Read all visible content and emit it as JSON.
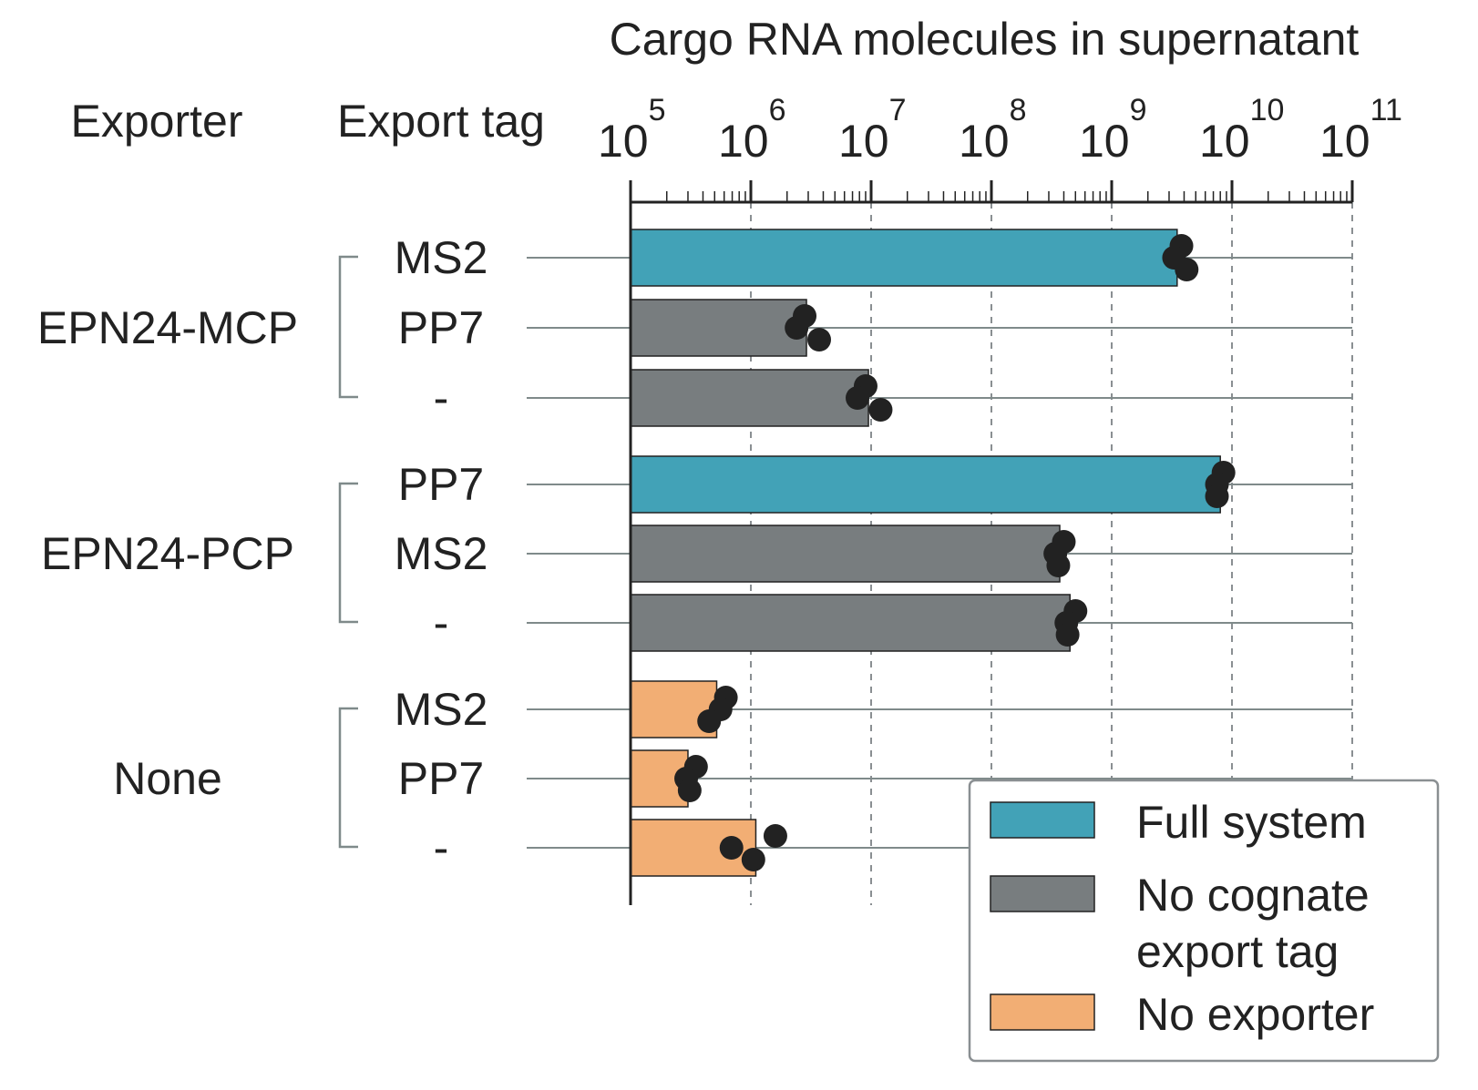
{
  "chart_data": {
    "type": "bar",
    "orientation": "horizontal",
    "title": "Cargo RNA molecules in supernatant",
    "x_scale": "log",
    "xlim": [
      100000,
      100000000000
    ],
    "x_tick_exponents": [
      "5",
      "6",
      "7",
      "8",
      "9",
      "10",
      "11"
    ],
    "x_tick_base": "10",
    "grid": "vertical dashed at decades",
    "column_headers": {
      "exporter": "Exporter",
      "export_tag": "Export tag"
    },
    "groups": [
      {
        "exporter": "EPN24-MCP",
        "rows": [
          0,
          1,
          2
        ]
      },
      {
        "exporter": "EPN24-PCP",
        "rows": [
          3,
          4,
          5
        ]
      },
      {
        "exporter": "None",
        "rows": [
          6,
          7,
          8
        ]
      }
    ],
    "rows": [
      {
        "tag": "MS2",
        "category": "full",
        "value": 3500000000,
        "points": [
          3800000000,
          3300000000,
          4200000000
        ]
      },
      {
        "tag": "PP7",
        "category": "nocognate",
        "value": 2900000,
        "points": [
          2800000,
          2400000,
          3700000
        ]
      },
      {
        "tag": "-",
        "category": "nocognate",
        "value": 9500000,
        "points": [
          9000000,
          7700000,
          12000000
        ]
      },
      {
        "tag": "PP7",
        "category": "full",
        "value": 8000000000,
        "points": [
          8500000000,
          7500000000,
          7500000000
        ]
      },
      {
        "tag": "MS2",
        "category": "nocognate",
        "value": 370000000,
        "points": [
          400000000,
          340000000,
          360000000
        ]
      },
      {
        "tag": "-",
        "category": "nocognate",
        "value": 450000000,
        "points": [
          500000000,
          420000000,
          430000000
        ]
      },
      {
        "tag": "MS2",
        "category": "noexporter",
        "value": 520000,
        "points": [
          620000,
          560000,
          450000
        ]
      },
      {
        "tag": "PP7",
        "category": "noexporter",
        "value": 300000,
        "points": [
          350000,
          290000,
          310000
        ]
      },
      {
        "tag": "-",
        "category": "noexporter",
        "value": 1100000,
        "points": [
          1600000,
          690000,
          1050000
        ]
      }
    ],
    "legend": {
      "placement": "bottom-right",
      "entries": [
        {
          "key": "full",
          "lines": [
            "Full system"
          ]
        },
        {
          "key": "nocognate",
          "lines": [
            "No cognate",
            "export tag"
          ]
        },
        {
          "key": "noexporter",
          "lines": [
            "No exporter"
          ]
        }
      ]
    },
    "colors": {
      "full": "#42a2b7",
      "nocognate": "#787d7f",
      "noexporter": "#f2ae74",
      "points": "#222222"
    }
  }
}
